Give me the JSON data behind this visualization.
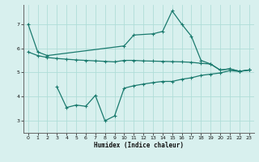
{
  "xlabel": "Humidex (Indice chaleur)",
  "bg_color": "#d8f0ee",
  "line_color": "#1a7a6e",
  "grid_color": "#b0ddd8",
  "xlim": [
    -0.5,
    23.5
  ],
  "ylim": [
    2.5,
    7.8
  ],
  "yticks": [
    3,
    4,
    5,
    6,
    7
  ],
  "xticks": [
    0,
    1,
    2,
    3,
    4,
    5,
    6,
    7,
    8,
    9,
    10,
    11,
    12,
    13,
    14,
    15,
    16,
    17,
    18,
    19,
    20,
    21,
    22,
    23
  ],
  "line1_x": [
    0,
    1,
    2,
    10,
    11,
    13,
    14,
    15,
    16,
    17,
    18,
    19,
    20,
    21,
    22,
    23
  ],
  "line1_y": [
    7.0,
    5.85,
    5.7,
    6.1,
    6.55,
    6.6,
    6.7,
    7.55,
    7.0,
    6.5,
    5.5,
    5.35,
    5.1,
    5.15,
    5.05,
    5.1
  ],
  "line2_x": [
    0,
    1,
    2,
    3,
    4,
    5,
    6,
    7,
    8,
    9,
    10,
    11,
    12,
    13,
    14,
    15,
    16,
    17,
    18,
    19,
    20,
    21,
    22,
    23
  ],
  "line2_y": [
    5.85,
    5.7,
    5.62,
    5.58,
    5.55,
    5.52,
    5.5,
    5.48,
    5.46,
    5.44,
    5.5,
    5.5,
    5.48,
    5.47,
    5.46,
    5.45,
    5.44,
    5.42,
    5.38,
    5.35,
    5.1,
    5.15,
    5.05,
    5.1
  ],
  "line3_x": [
    3,
    4,
    5,
    6,
    7,
    8,
    9,
    10,
    11,
    12,
    13,
    14,
    15,
    16,
    17,
    18,
    19,
    20,
    21,
    22,
    23
  ],
  "line3_y": [
    4.4,
    3.55,
    3.65,
    3.6,
    4.05,
    3.0,
    3.2,
    4.35,
    4.45,
    4.52,
    4.58,
    4.63,
    4.63,
    4.72,
    4.78,
    4.88,
    4.93,
    4.98,
    5.08,
    5.04,
    5.1
  ],
  "marker_size": 3.5,
  "line_width": 0.9
}
